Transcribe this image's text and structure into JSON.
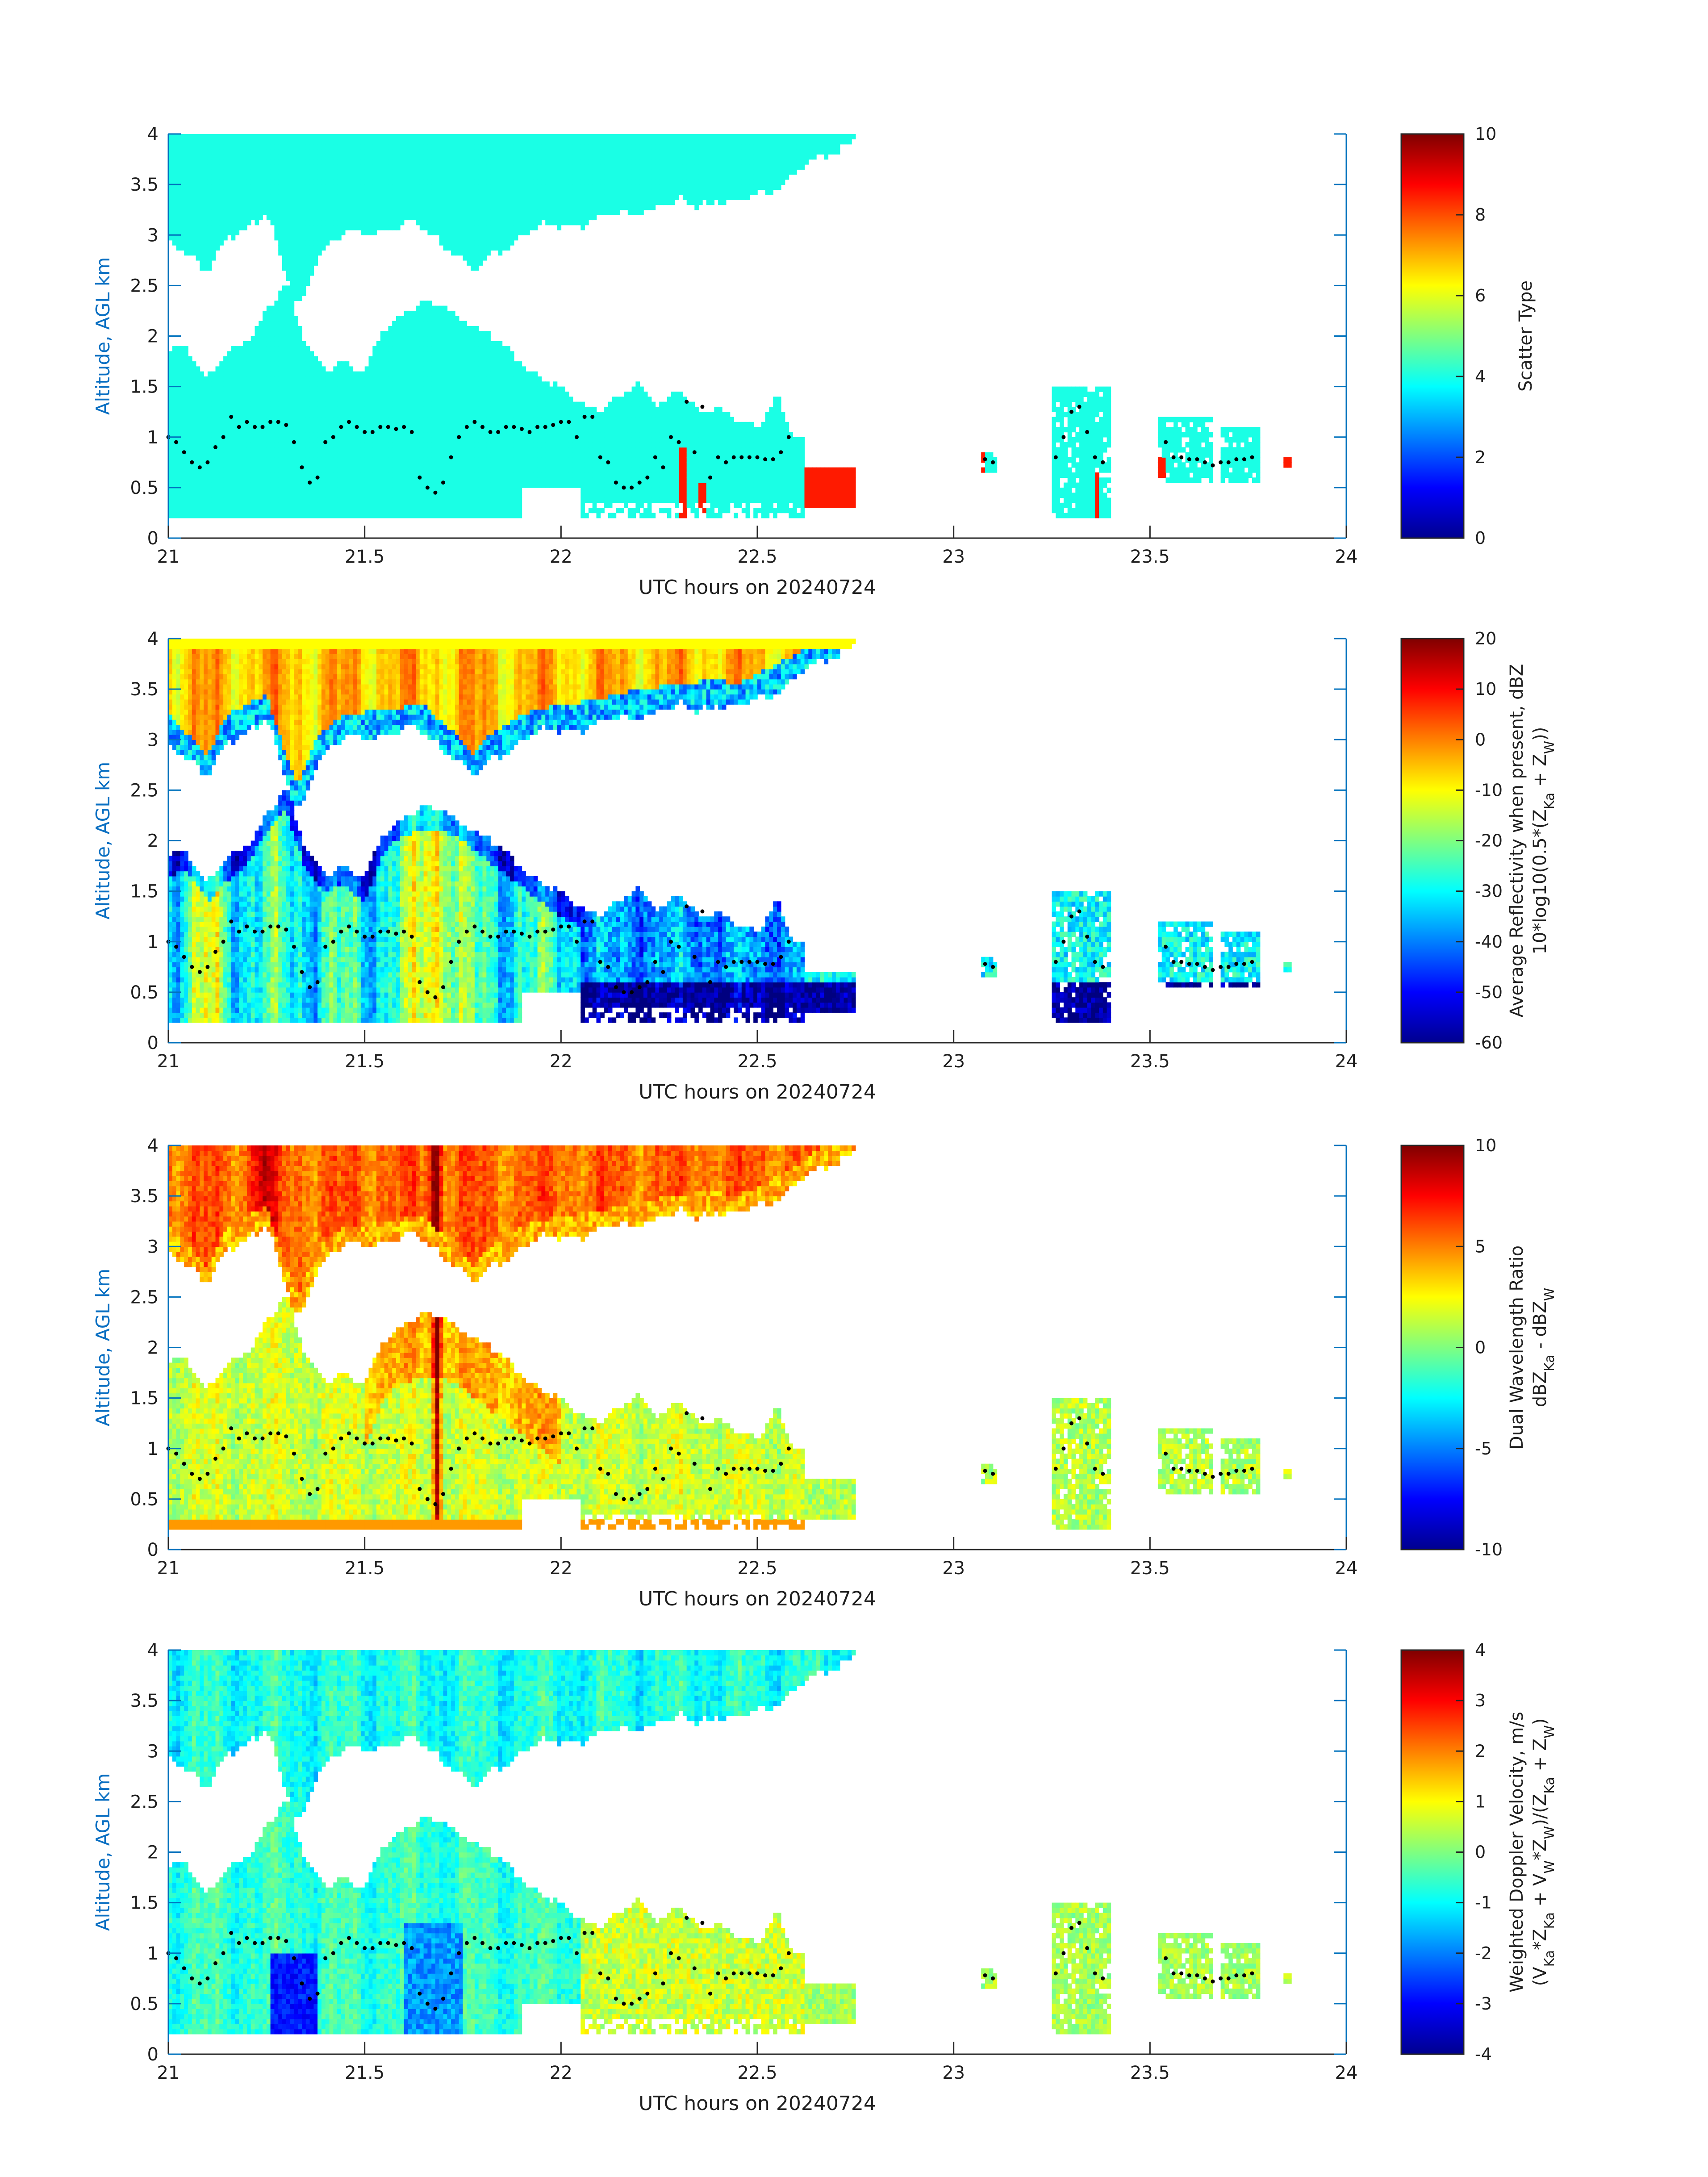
{
  "chart_data": [
    {
      "type": "heatmap",
      "variable": "scatter_type",
      "xlabel": "UTC hours on 20240724",
      "ylabel": "Altitude, AGL km",
      "xlim": [
        21,
        24
      ],
      "ylim": [
        0,
        4
      ],
      "xticks": [
        "21",
        "21.5",
        "22",
        "22.5",
        "23",
        "23.5",
        "24"
      ],
      "yticks": [
        "0",
        "0.5",
        "1",
        "1.5",
        "2",
        "2.5",
        "3",
        "3.5",
        "4"
      ],
      "colorbar": {
        "label_lines": [
          "Scatter Type"
        ],
        "range": [
          0,
          10
        ],
        "ticks": [
          "0",
          "2",
          "4",
          "6",
          "8",
          "10"
        ]
      },
      "colormap": "jet",
      "dominant_value": 4,
      "secondary_value": 8.5
    },
    {
      "type": "heatmap",
      "variable": "reflectivity",
      "xlabel": "UTC hours on 20240724",
      "ylabel": "Altitude, AGL km",
      "xlim": [
        21,
        24
      ],
      "ylim": [
        0,
        4
      ],
      "xticks": [
        "21",
        "21.5",
        "22",
        "22.5",
        "23",
        "23.5",
        "24"
      ],
      "yticks": [
        "0",
        "0.5",
        "1",
        "1.5",
        "2",
        "2.5",
        "3",
        "3.5",
        "4"
      ],
      "colorbar": {
        "label_lines": [
          "Average Reflectivity when present, dBZ",
          "10*log10(0.5*(Z_Ka + Z_W))"
        ],
        "range": [
          -60,
          20
        ],
        "ticks": [
          "-60",
          "-50",
          "-40",
          "-30",
          "-20",
          "-10",
          "0",
          "10",
          "20"
        ]
      },
      "colormap": "jet"
    },
    {
      "type": "heatmap",
      "variable": "dwr",
      "xlabel": "UTC hours on 20240724",
      "ylabel": "Altitude, AGL km",
      "xlim": [
        21,
        24
      ],
      "ylim": [
        0,
        4
      ],
      "xticks": [
        "21",
        "21.5",
        "22",
        "22.5",
        "23",
        "23.5",
        "24"
      ],
      "yticks": [
        "0",
        "0.5",
        "1",
        "1.5",
        "2",
        "2.5",
        "3",
        "3.5",
        "4"
      ],
      "colorbar": {
        "label_lines": [
          "Dual Wavelength Ratio",
          "dBZ_Ka - dBZ_W"
        ],
        "range": [
          -10,
          10
        ],
        "ticks": [
          "-10",
          "-5",
          "0",
          "5",
          "10"
        ]
      },
      "colormap": "jet"
    },
    {
      "type": "heatmap",
      "variable": "doppler",
      "xlabel": "UTC hours on 20240724",
      "ylabel": "Altitude, AGL km",
      "xlim": [
        21,
        24
      ],
      "ylim": [
        0,
        4
      ],
      "xticks": [
        "21",
        "21.5",
        "22",
        "22.5",
        "23",
        "23.5",
        "24"
      ],
      "yticks": [
        "0",
        "0.5",
        "1",
        "1.5",
        "2",
        "2.5",
        "3",
        "3.5",
        "4"
      ],
      "colorbar": {
        "label_lines": [
          "Weighted Doppler Velocity, m/s",
          "(V_Ka*Z_Ka + V_W*Z_W)/(Z_Ka + Z_W)"
        ],
        "range": [
          -4,
          4
        ],
        "ticks": [
          "-4",
          "-3",
          "-2",
          "-1",
          "0",
          "1",
          "2",
          "3",
          "4"
        ]
      },
      "colormap": "jet"
    }
  ],
  "cloud_base_km": [
    [
      21.0,
      1.0
    ],
    [
      21.02,
      0.95
    ],
    [
      21.04,
      0.85
    ],
    [
      21.06,
      0.75
    ],
    [
      21.08,
      0.7
    ],
    [
      21.1,
      0.75
    ],
    [
      21.12,
      0.9
    ],
    [
      21.14,
      1.0
    ],
    [
      21.16,
      1.2
    ],
    [
      21.18,
      1.1
    ],
    [
      21.2,
      1.15
    ],
    [
      21.22,
      1.1
    ],
    [
      21.24,
      1.1
    ],
    [
      21.26,
      1.15
    ],
    [
      21.28,
      1.15
    ],
    [
      21.3,
      1.12
    ],
    [
      21.32,
      0.95
    ],
    [
      21.34,
      0.7
    ],
    [
      21.36,
      0.55
    ],
    [
      21.38,
      0.6
    ],
    [
      21.4,
      0.95
    ],
    [
      21.42,
      1.0
    ],
    [
      21.44,
      1.1
    ],
    [
      21.46,
      1.15
    ],
    [
      21.48,
      1.1
    ],
    [
      21.5,
      1.05
    ],
    [
      21.52,
      1.05
    ],
    [
      21.54,
      1.1
    ],
    [
      21.56,
      1.1
    ],
    [
      21.58,
      1.08
    ],
    [
      21.6,
      1.1
    ],
    [
      21.62,
      1.05
    ],
    [
      21.64,
      0.6
    ],
    [
      21.66,
      0.5
    ],
    [
      21.68,
      0.45
    ],
    [
      21.7,
      0.55
    ],
    [
      21.72,
      0.8
    ],
    [
      21.74,
      1.0
    ],
    [
      21.76,
      1.1
    ],
    [
      21.78,
      1.15
    ],
    [
      21.8,
      1.1
    ],
    [
      21.82,
      1.05
    ],
    [
      21.84,
      1.05
    ],
    [
      21.86,
      1.1
    ],
    [
      21.88,
      1.1
    ],
    [
      21.9,
      1.08
    ],
    [
      21.92,
      1.05
    ],
    [
      21.94,
      1.1
    ],
    [
      21.96,
      1.1
    ],
    [
      21.98,
      1.12
    ],
    [
      22.0,
      1.15
    ],
    [
      22.02,
      1.15
    ],
    [
      22.04,
      1.0
    ],
    [
      22.06,
      1.2
    ],
    [
      22.08,
      1.2
    ],
    [
      22.1,
      0.8
    ],
    [
      22.12,
      0.75
    ],
    [
      22.14,
      0.55
    ],
    [
      22.16,
      0.5
    ],
    [
      22.18,
      0.5
    ],
    [
      22.2,
      0.55
    ],
    [
      22.22,
      0.6
    ],
    [
      22.24,
      0.8
    ],
    [
      22.26,
      0.7
    ],
    [
      22.28,
      1.0
    ],
    [
      22.3,
      0.95
    ],
    [
      22.32,
      1.35
    ],
    [
      22.34,
      0.85
    ],
    [
      22.36,
      1.3
    ],
    [
      22.38,
      0.6
    ],
    [
      22.4,
      0.8
    ],
    [
      22.42,
      0.75
    ],
    [
      22.44,
      0.8
    ],
    [
      22.46,
      0.8
    ],
    [
      22.48,
      0.8
    ],
    [
      22.5,
      0.8
    ],
    [
      22.52,
      0.78
    ],
    [
      22.54,
      0.78
    ],
    [
      22.56,
      0.85
    ],
    [
      22.58,
      1.0
    ],
    [
      23.08,
      0.78
    ],
    [
      23.1,
      0.75
    ],
    [
      23.26,
      0.8
    ],
    [
      23.28,
      1.0
    ],
    [
      23.3,
      1.25
    ],
    [
      23.32,
      1.3
    ],
    [
      23.34,
      1.05
    ],
    [
      23.36,
      0.8
    ],
    [
      23.38,
      0.75
    ],
    [
      23.54,
      0.95
    ],
    [
      23.56,
      0.8
    ],
    [
      23.58,
      0.8
    ],
    [
      23.6,
      0.78
    ],
    [
      23.62,
      0.78
    ],
    [
      23.64,
      0.75
    ],
    [
      23.66,
      0.72
    ],
    [
      23.68,
      0.75
    ],
    [
      23.7,
      0.75
    ],
    [
      23.72,
      0.78
    ],
    [
      23.74,
      0.78
    ],
    [
      23.76,
      0.8
    ]
  ]
}
